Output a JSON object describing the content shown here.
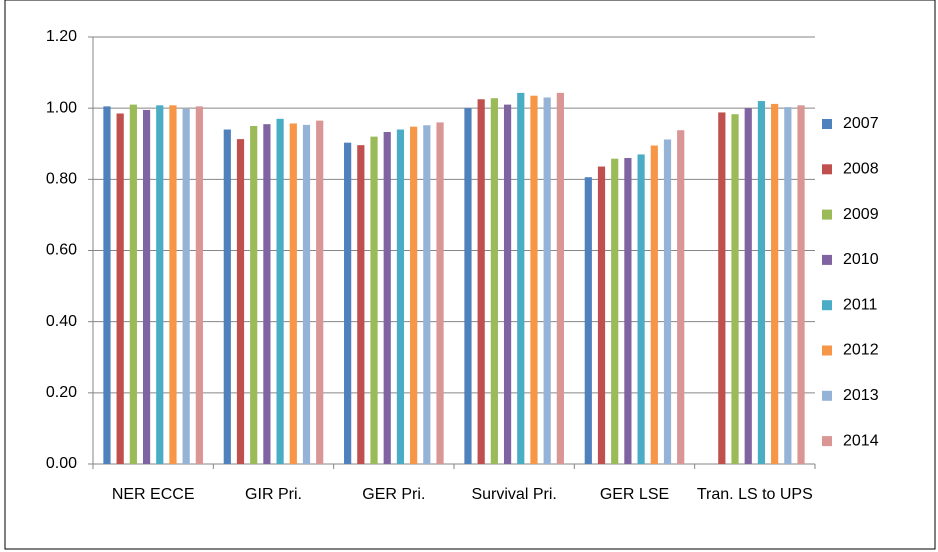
{
  "chart_data": {
    "type": "bar",
    "categories": [
      "NER ECCE",
      "GIR Pri.",
      "GER Pri.",
      "Survival Pri.",
      "GER LSE",
      "Tran. LS to UPS"
    ],
    "series": [
      {
        "name": "2007",
        "color": "#4f81bd",
        "values": [
          1.005,
          0.94,
          0.903,
          1.0,
          0.806,
          null
        ]
      },
      {
        "name": "2008",
        "color": "#c0504d",
        "values": [
          0.985,
          0.913,
          0.896,
          1.025,
          0.836,
          0.988
        ]
      },
      {
        "name": "2009",
        "color": "#9bbb59",
        "values": [
          1.01,
          0.95,
          0.92,
          1.028,
          0.858,
          0.983
        ]
      },
      {
        "name": "2010",
        "color": "#8064a2",
        "values": [
          0.995,
          0.955,
          0.933,
          1.01,
          0.86,
          1.0
        ]
      },
      {
        "name": "2011",
        "color": "#4bacc6",
        "values": [
          1.008,
          0.97,
          0.94,
          1.043,
          0.87,
          1.02
        ]
      },
      {
        "name": "2012",
        "color": "#f79646",
        "values": [
          1.008,
          0.957,
          0.948,
          1.035,
          0.895,
          1.012
        ]
      },
      {
        "name": "2013",
        "color": "#95b3d7",
        "values": [
          0.998,
          0.953,
          0.952,
          1.03,
          0.912,
          1.003
        ]
      },
      {
        "name": "2014",
        "color": "#d99694",
        "values": [
          1.005,
          0.965,
          0.96,
          1.043,
          0.938,
          1.008
        ]
      }
    ],
    "ylim": [
      0,
      1.2
    ],
    "yticks": [
      {
        "value": 0,
        "label": "0.00"
      },
      {
        "value": 0.2,
        "label": "0.20"
      },
      {
        "value": 0.4,
        "label": "0.40"
      },
      {
        "value": 0.6,
        "label": "0.60"
      },
      {
        "value": 0.8,
        "label": "0.80"
      },
      {
        "value": 1.0,
        "label": "1.00"
      },
      {
        "value": 1.2,
        "label": "1.20"
      }
    ],
    "grid": true,
    "legend": "right"
  }
}
